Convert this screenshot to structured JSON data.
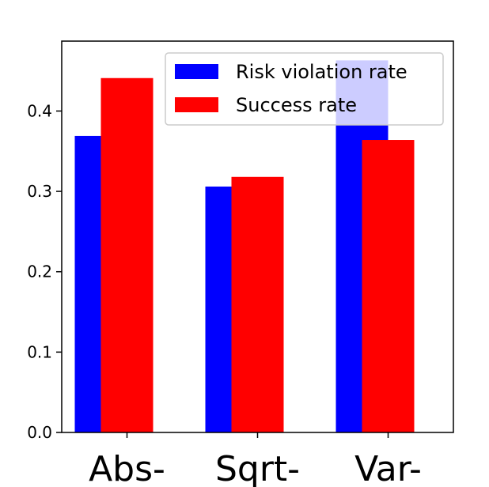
{
  "chart_data": {
    "type": "bar",
    "categories": [
      "Abs-",
      "Sqrt-",
      "Var-"
    ],
    "series": [
      {
        "name": "Risk violation rate",
        "values": [
          0.369,
          0.306,
          0.463
        ],
        "color": "#0000ff"
      },
      {
        "name": "Success rate",
        "values": [
          0.441,
          0.318,
          0.364
        ],
        "color": "#ff0000"
      }
    ],
    "title": "",
    "xlabel": "",
    "ylabel": "",
    "ylim": [
      0.0,
      0.487
    ],
    "yticks": [
      "0.0",
      "0.1",
      "0.2",
      "0.3",
      "0.4"
    ],
    "grid": false,
    "legend_position": "top-right"
  }
}
